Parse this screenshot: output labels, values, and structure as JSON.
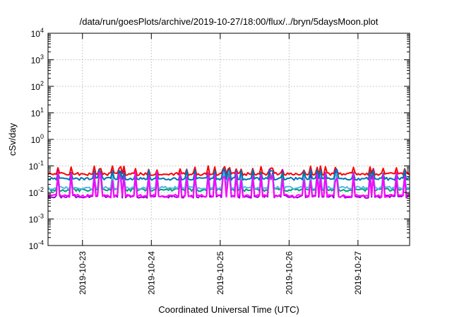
{
  "title": "/data/run/goesPlots/archive/2019-10-27/18:00/flux/../bryn/5daysMoon.plot",
  "chart_data": {
    "type": "line",
    "title": "/data/run/goesPlots/archive/2019-10-27/18:00/flux/../bryn/5daysMoon.plot",
    "xlabel": "Coordinated Universal Time (UTC)",
    "ylabel": "cSv/day",
    "x_range": [
      "2019-10-22 12:00",
      "2019-10-27 18:00"
    ],
    "x_ticks": [
      "2019-10-23",
      "2019-10-24",
      "2019-10-25",
      "2019-10-26",
      "2019-10-27"
    ],
    "y_scale": "log",
    "ylim": [
      0.0001,
      10000
    ],
    "y_ticks": [
      {
        "base": "10",
        "exp": "4",
        "value": 10000
      },
      {
        "base": "10",
        "exp": "3",
        "value": 1000
      },
      {
        "base": "10",
        "exp": "2",
        "value": 100
      },
      {
        "base": "10",
        "exp": "1",
        "value": 10
      },
      {
        "base": "10",
        "exp": "0",
        "value": 1
      },
      {
        "base": "10",
        "exp": "-1",
        "value": 0.1
      },
      {
        "base": "10",
        "exp": "-2",
        "value": 0.01
      },
      {
        "base": "10",
        "exp": "-3",
        "value": 0.001
      },
      {
        "base": "10",
        "exp": "-4",
        "value": 0.0001
      }
    ],
    "grid": true,
    "series": [
      {
        "color": "#ff0000",
        "baseline": 0.05,
        "spike": 0.1
      },
      {
        "color": "#9400d3",
        "baseline": 0.007,
        "spike": 0.075
      },
      {
        "color": "#009e73",
        "baseline": 0.0125,
        "spike": 0.055
      },
      {
        "color": "#56b4e9",
        "baseline": 0.015,
        "spike": 0.06
      },
      {
        "color": "#0072b2",
        "baseline": 0.033,
        "spike": 0.075
      },
      {
        "color": "#ff00ff",
        "baseline": 0.0075,
        "spike": 0.06
      }
    ]
  }
}
